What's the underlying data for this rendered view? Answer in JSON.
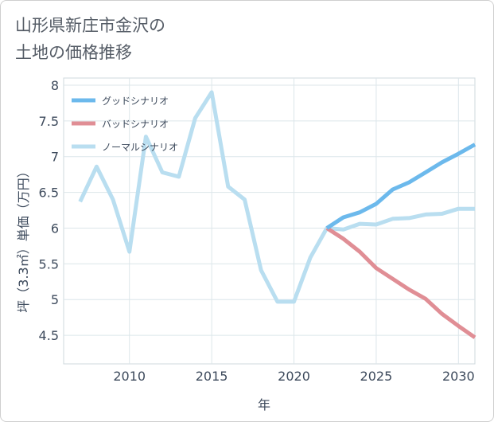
{
  "chart_data": {
    "type": "line",
    "title": [
      "山形県新庄市金沢の",
      "土地の価格推移"
    ],
    "xlabel": "年",
    "ylabel": "坪（3.3㎡）単価（万円）",
    "xlim": [
      2006,
      2031
    ],
    "ylim": [
      4.1,
      8.1
    ],
    "xticks": [
      2010,
      2015,
      2020,
      2025,
      2030
    ],
    "yticks": [
      4.5,
      5,
      5.5,
      6,
      6.5,
      7,
      7.5,
      8
    ],
    "ytick_labels": [
      "4.5",
      "5",
      "5.5",
      "6",
      "6.5",
      "7",
      "7.5",
      "8"
    ],
    "grid": true,
    "legend_position": "top-left",
    "series": [
      {
        "name": "グッドシナリオ",
        "color": "#6cb9ec",
        "x": [
          2022,
          2023,
          2024,
          2025,
          2026,
          2027,
          2028,
          2029,
          2030,
          2031
        ],
        "y": [
          6.0,
          6.15,
          6.22,
          6.34,
          6.54,
          6.64,
          6.78,
          6.92,
          7.04,
          7.17
        ]
      },
      {
        "name": "バッドシナリオ",
        "color": "#e08e95",
        "x": [
          2022,
          2023,
          2024,
          2025,
          2026,
          2027,
          2028,
          2029,
          2030,
          2031
        ],
        "y": [
          6.0,
          5.85,
          5.67,
          5.44,
          5.29,
          5.14,
          5.01,
          4.8,
          4.63,
          4.47
        ]
      },
      {
        "name": "ノーマルシナリオ",
        "color": "#b9def0",
        "x": [
          2007,
          2008,
          2009,
          2010,
          2011,
          2012,
          2013,
          2014,
          2015,
          2016,
          2017,
          2018,
          2019,
          2020,
          2021,
          2022,
          2023,
          2024,
          2025,
          2026,
          2027,
          2028,
          2029,
          2030,
          2031
        ],
        "y": [
          6.37,
          6.86,
          6.4,
          5.67,
          7.28,
          6.78,
          6.72,
          7.54,
          7.9,
          6.58,
          6.4,
          5.41,
          4.97,
          4.97,
          5.59,
          6.0,
          5.98,
          6.06,
          6.05,
          6.13,
          6.14,
          6.19,
          6.2,
          6.27,
          6.27
        ]
      }
    ]
  }
}
